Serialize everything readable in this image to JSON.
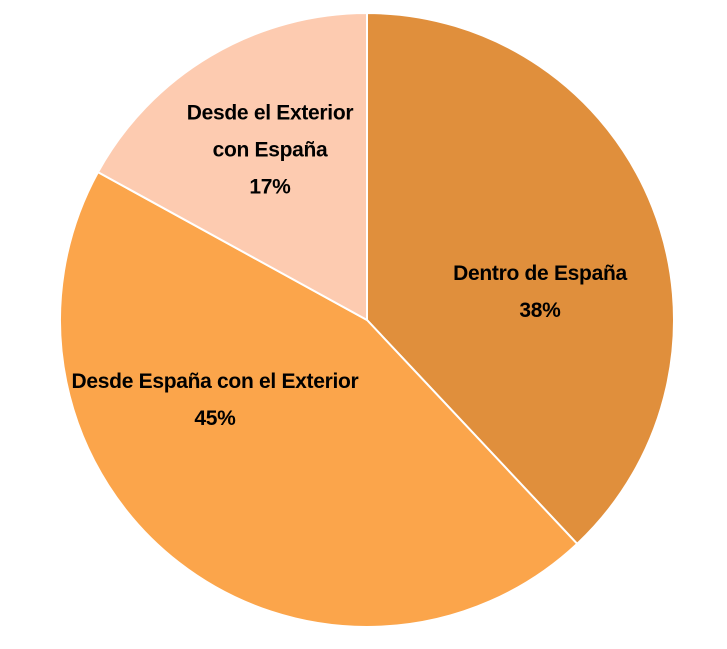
{
  "chart_data": {
    "type": "pie",
    "categories": [
      "Dentro de España",
      "Desde España con el Exterior",
      "Desde el Exterior con España"
    ],
    "values": [
      38,
      45,
      17
    ],
    "value_labels": [
      "38%",
      "45%",
      "17%"
    ],
    "colors": [
      "#e08f3c",
      "#fba54b",
      "#fdcbb0"
    ]
  }
}
